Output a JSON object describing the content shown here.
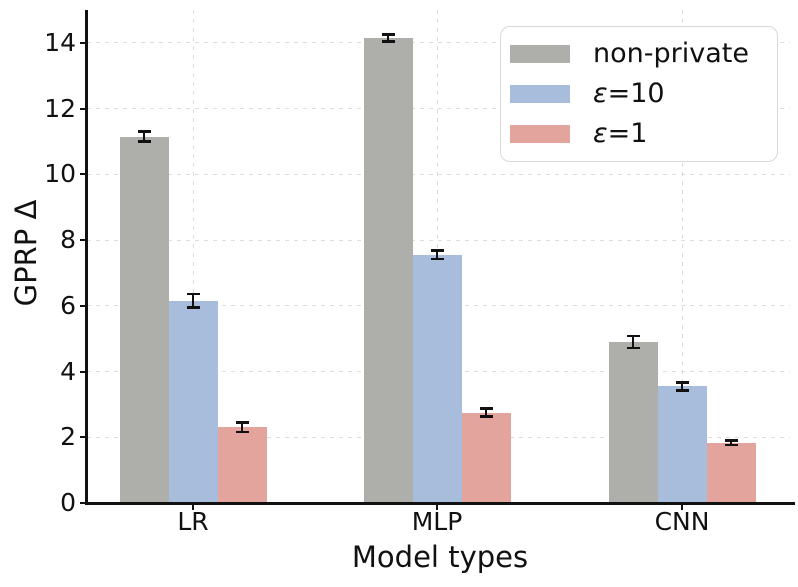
{
  "chart_data": {
    "type": "bar",
    "title": "",
    "xlabel": "Model types",
    "ylabel": "GPRP Δ",
    "categories": [
      "LR",
      "MLP",
      "CNN"
    ],
    "series": [
      {
        "name": "non-private",
        "color": "#aeaeaa",
        "values": [
          11.15,
          14.15,
          4.9
        ],
        "errors": [
          0.19,
          0.14,
          0.22
        ]
      },
      {
        "name": "ε=10",
        "color": "#a8bddc",
        "values": [
          6.15,
          7.55,
          3.55
        ],
        "errors": [
          0.24,
          0.17,
          0.16
        ]
      },
      {
        "name": "ε=1",
        "color": "#e2a49d",
        "values": [
          2.3,
          2.75,
          1.83
        ],
        "errors": [
          0.18,
          0.16,
          0.11
        ]
      }
    ],
    "ylim": [
      0,
      15
    ],
    "yticks": [
      0,
      2,
      4,
      6,
      8,
      10,
      12,
      14
    ],
    "grid": true,
    "grid_style": "dashed",
    "legend_position": "upper right",
    "error_bar_color": "#111111",
    "background_color": "#ffffff"
  }
}
